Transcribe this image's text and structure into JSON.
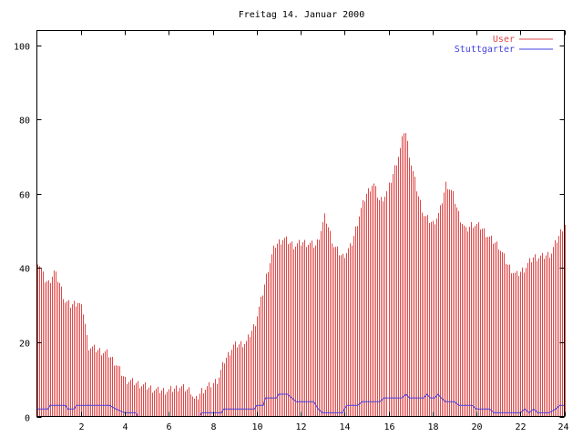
{
  "chart_data": {
    "type": "bar",
    "title": "Freitag 14. Januar 2000",
    "xlim": [
      0,
      24
    ],
    "ylim": [
      0,
      104
    ],
    "x_ticks": [
      "2",
      "4",
      "6",
      "8",
      "10",
      "12",
      "14",
      "16",
      "18",
      "20",
      "22",
      "24"
    ],
    "y_ticks": [
      "0",
      "20",
      "40",
      "60",
      "80",
      "100"
    ],
    "legend_position": "top-right",
    "series": [
      {
        "name": "User",
        "style": "impulses",
        "color": "#e04848",
        "keypoints": [
          [
            0,
            42
          ],
          [
            0.15,
            40
          ],
          [
            0.3,
            37
          ],
          [
            0.5,
            36
          ],
          [
            0.75,
            39
          ],
          [
            1.0,
            36
          ],
          [
            1.25,
            31
          ],
          [
            1.5,
            30
          ],
          [
            1.85,
            31
          ],
          [
            2.1,
            28
          ],
          [
            2.3,
            19
          ],
          [
            2.7,
            18
          ],
          [
            3.2,
            17
          ],
          [
            3.6,
            14
          ],
          [
            4.0,
            10
          ],
          [
            4.5,
            9
          ],
          [
            5.0,
            8
          ],
          [
            5.5,
            7
          ],
          [
            6.0,
            7
          ],
          [
            6.5,
            8
          ],
          [
            7.0,
            7
          ],
          [
            7.2,
            4
          ],
          [
            7.5,
            7
          ],
          [
            7.8,
            8
          ],
          [
            8.2,
            10
          ],
          [
            8.5,
            15
          ],
          [
            8.9,
            19
          ],
          [
            9.5,
            20
          ],
          [
            9.9,
            25
          ],
          [
            10.2,
            32
          ],
          [
            10.5,
            40
          ],
          [
            10.8,
            46
          ],
          [
            11.2,
            48
          ],
          [
            11.7,
            46
          ],
          [
            12.1,
            47
          ],
          [
            12.7,
            46
          ],
          [
            13.1,
            54
          ],
          [
            13.5,
            46
          ],
          [
            13.9,
            43
          ],
          [
            14.3,
            46
          ],
          [
            14.7,
            55
          ],
          [
            15.0,
            60
          ],
          [
            15.3,
            63
          ],
          [
            15.6,
            58
          ],
          [
            15.9,
            60
          ],
          [
            16.2,
            66
          ],
          [
            16.5,
            72
          ],
          [
            16.7,
            78
          ],
          [
            17.0,
            68
          ],
          [
            17.3,
            60
          ],
          [
            17.6,
            54
          ],
          [
            18.0,
            52
          ],
          [
            18.3,
            55
          ],
          [
            18.6,
            63
          ],
          [
            18.9,
            60
          ],
          [
            19.2,
            54
          ],
          [
            19.5,
            50
          ],
          [
            19.8,
            52
          ],
          [
            20.2,
            51
          ],
          [
            20.6,
            48
          ],
          [
            21.0,
            46
          ],
          [
            21.4,
            41
          ],
          [
            21.8,
            38
          ],
          [
            22.2,
            40
          ],
          [
            22.6,
            43
          ],
          [
            23.0,
            43
          ],
          [
            23.4,
            44
          ],
          [
            23.7,
            48
          ],
          [
            24,
            52
          ]
        ]
      },
      {
        "name": "Stuttgarter",
        "style": "lines",
        "color": "#4040e0",
        "keypoints": [
          [
            0,
            2
          ],
          [
            0.5,
            2
          ],
          [
            0.6,
            3
          ],
          [
            1.3,
            3
          ],
          [
            1.4,
            2
          ],
          [
            1.7,
            2
          ],
          [
            1.8,
            3
          ],
          [
            3.3,
            3
          ],
          [
            3.6,
            2
          ],
          [
            4.0,
            1
          ],
          [
            4.5,
            1
          ],
          [
            4.6,
            0
          ],
          [
            7.4,
            0
          ],
          [
            7.5,
            1
          ],
          [
            8.4,
            1
          ],
          [
            8.5,
            2
          ],
          [
            9.9,
            2
          ],
          [
            10.0,
            3
          ],
          [
            10.3,
            3
          ],
          [
            10.4,
            5
          ],
          [
            10.9,
            5
          ],
          [
            11.0,
            6
          ],
          [
            11.4,
            6
          ],
          [
            11.6,
            5
          ],
          [
            11.8,
            4
          ],
          [
            12.6,
            4
          ],
          [
            12.8,
            2
          ],
          [
            13.0,
            1
          ],
          [
            13.9,
            1
          ],
          [
            14.1,
            3
          ],
          [
            14.6,
            3
          ],
          [
            14.8,
            4
          ],
          [
            15.6,
            4
          ],
          [
            15.8,
            5
          ],
          [
            16.6,
            5
          ],
          [
            16.8,
            6
          ],
          [
            16.95,
            5
          ],
          [
            17.6,
            5
          ],
          [
            17.75,
            6
          ],
          [
            17.9,
            5
          ],
          [
            18.1,
            5
          ],
          [
            18.25,
            6
          ],
          [
            18.4,
            5
          ],
          [
            18.6,
            4
          ],
          [
            19.0,
            4
          ],
          [
            19.2,
            3
          ],
          [
            19.8,
            3
          ],
          [
            20.0,
            2
          ],
          [
            20.6,
            2
          ],
          [
            20.8,
            1
          ],
          [
            22.0,
            1
          ],
          [
            22.2,
            2
          ],
          [
            22.4,
            1
          ],
          [
            22.6,
            2
          ],
          [
            22.8,
            1
          ],
          [
            23.3,
            1
          ],
          [
            23.6,
            2
          ],
          [
            23.8,
            3
          ],
          [
            24,
            3
          ]
        ]
      }
    ]
  }
}
